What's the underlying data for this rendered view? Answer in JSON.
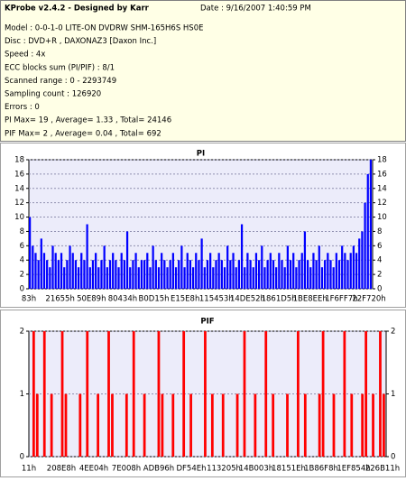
{
  "header": {
    "title": "KProbe v2.4.2 - Designed by Karr",
    "date": "Date : 9/16/2007 1:40:59 PM",
    "lines": [
      "Model : 0-0-1-0 LITE-ON DVDRW SHM-165H6S HS0E",
      "Disc : DVD+R , DAXONAZ3 [Daxon Inc.]",
      "Speed : 4x",
      "ECC blocks sum (PI/PIF) : 8/1",
      "Scanned range : 0 - 2293749",
      "Sampling count : 126920",
      "Errors : 0",
      "PI Max= 19 , Average= 1.33 , Total= 24146",
      "PIF Max= 2 , Average= 0.04 , Total= 692"
    ]
  },
  "chart_data": [
    {
      "type": "bar",
      "title": "PI",
      "color": "#0000ff",
      "grid": true,
      "ylim": [
        0,
        18
      ],
      "yticks": [
        0,
        2,
        4,
        6,
        8,
        10,
        12,
        14,
        16,
        18
      ],
      "xtick_labels": [
        "83h",
        "21655h",
        "50E89h",
        "80434h",
        "B0D15h",
        "E15E8h",
        "115453h",
        "14DE52h",
        "1861D5h",
        "1BE8EEh",
        "1F6FF7h",
        "22F720h"
      ],
      "values": [
        10,
        6,
        5,
        4,
        7,
        5,
        4,
        3,
        6,
        5,
        4,
        5,
        3,
        4,
        6,
        5,
        4,
        3,
        5,
        4,
        9,
        3,
        4,
        5,
        3,
        4,
        6,
        3,
        4,
        5,
        4,
        3,
        5,
        4,
        8,
        3,
        4,
        5,
        3,
        4,
        4,
        5,
        3,
        6,
        4,
        3,
        5,
        4,
        3,
        4,
        5,
        3,
        4,
        6,
        3,
        5,
        4,
        3,
        5,
        4,
        7,
        3,
        4,
        5,
        3,
        4,
        5,
        4,
        3,
        6,
        4,
        5,
        3,
        4,
        9,
        3,
        5,
        4,
        3,
        5,
        4,
        6,
        3,
        4,
        5,
        4,
        3,
        5,
        4,
        3,
        6,
        4,
        5,
        3,
        4,
        5,
        8,
        4,
        3,
        5,
        4,
        6,
        3,
        4,
        5,
        4,
        3,
        5,
        4,
        6,
        5,
        4,
        5,
        6,
        5,
        7,
        8,
        12,
        16,
        18
      ]
    },
    {
      "type": "bar",
      "title": "PIF",
      "color": "#ff0000",
      "grid": true,
      "ylim": [
        0,
        2
      ],
      "yticks": [
        0,
        1,
        2
      ],
      "xtick_labels": [
        "11h",
        "208E8h",
        "4EE04h",
        "7E008h",
        "ADB96h",
        "DF54Eh",
        "113205h",
        "14B003h",
        "18151Eh",
        "1B86F8h",
        "1EF854h",
        "226B11h"
      ],
      "values": [
        0,
        2,
        1,
        0,
        2,
        0,
        1,
        0,
        0,
        2,
        1,
        0,
        0,
        0,
        1,
        0,
        2,
        0,
        0,
        1,
        0,
        0,
        2,
        1,
        0,
        0,
        0,
        1,
        0,
        2,
        0,
        0,
        1,
        0,
        0,
        0,
        2,
        1,
        0,
        0,
        1,
        0,
        0,
        2,
        0,
        1,
        0,
        0,
        0,
        2,
        0,
        1,
        0,
        0,
        1,
        0,
        0,
        0,
        1,
        0,
        2,
        0,
        0,
        1,
        0,
        0,
        2,
        0,
        1,
        0,
        0,
        0,
        1,
        0,
        0,
        2,
        0,
        1,
        0,
        0,
        0,
        1,
        2,
        0,
        0,
        1,
        0,
        0,
        2,
        0,
        1,
        0,
        0,
        1,
        2,
        0,
        1,
        0,
        2,
        1
      ]
    }
  ]
}
